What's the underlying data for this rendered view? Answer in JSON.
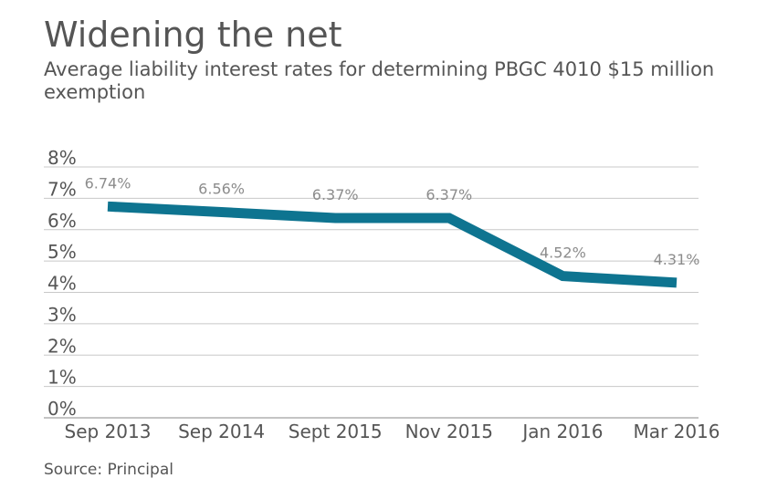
{
  "chart_data": {
    "type": "line",
    "title": "Widening the net",
    "subtitle": "Average liability interest rates for determining PBGC 4010 $15 million exemption",
    "source": "Source: Principal",
    "categories": [
      "Sep 2013",
      "Sep 2014",
      "Sept 2015",
      "Nov 2015",
      "Jan 2016",
      "Mar 2016"
    ],
    "series": [
      {
        "name": "Average liability interest rate",
        "values": [
          6.74,
          6.56,
          6.37,
          6.37,
          4.52,
          4.31
        ]
      }
    ],
    "data_labels": [
      "6.74%",
      "6.56%",
      "6.37%",
      "6.37%",
      "4.52%",
      "4.31%"
    ],
    "ylim": [
      0,
      8
    ],
    "yticks": [
      0,
      1,
      2,
      3,
      4,
      5,
      6,
      7,
      8
    ],
    "ytick_labels": [
      "0%",
      "1%",
      "2%",
      "3%",
      "4%",
      "5%",
      "6%",
      "7%",
      "8%"
    ],
    "xlabel": "",
    "ylabel": "",
    "grid": true,
    "line_color": "#0e7490"
  }
}
